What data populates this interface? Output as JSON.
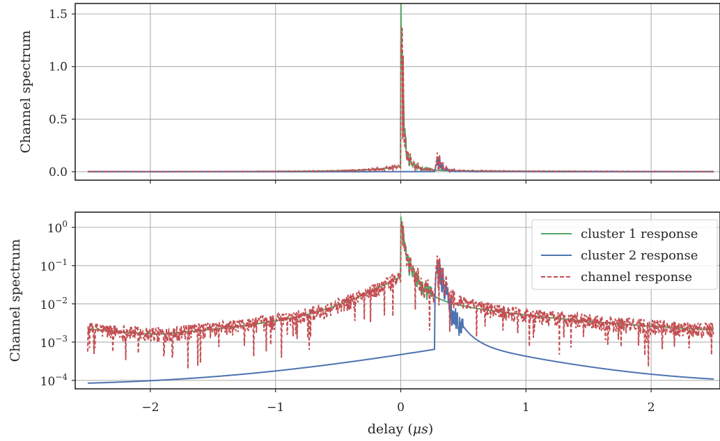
{
  "chart_data": [
    {
      "type": "line",
      "ylabel": "Channel spectrum",
      "xlim": [
        -2.6,
        2.55
      ],
      "ylim": [
        -0.08,
        1.6
      ],
      "yscale": "linear",
      "grid": true,
      "xticks": [
        -2,
        -1,
        0,
        1,
        2
      ],
      "yticks": [
        {
          "v": 0.0,
          "label": "0.0"
        },
        {
          "v": 0.5,
          "label": "0.5"
        },
        {
          "v": 1.0,
          "label": "1.0"
        },
        {
          "v": 1.5,
          "label": "1.5"
        }
      ],
      "series": [
        {
          "name": "cluster 1 response",
          "color": "#55a868",
          "style": "solid"
        },
        {
          "name": "cluster 2 response",
          "color": "#4c72b0",
          "style": "solid"
        },
        {
          "name": "channel response",
          "color": "#c44e52",
          "style": "dashed"
        }
      ]
    },
    {
      "type": "line",
      "ylabel": "Channel spectrum",
      "xlabel_base": "delay (",
      "xlabel_mu": "μs",
      "xlabel_end": ")",
      "xlim": [
        -2.6,
        2.55
      ],
      "ylim": [
        6e-05,
        2.5
      ],
      "yscale": "log",
      "grid": true,
      "legend_position": "top-right",
      "xticks": [
        -2,
        -1,
        0,
        1,
        2
      ],
      "xtick_labels": [
        "−2",
        "−1",
        "0",
        "1",
        "2"
      ],
      "yticks": [
        {
          "v": 1,
          "exp": "0"
        },
        {
          "v": 0.1,
          "exp": "−1"
        },
        {
          "v": 0.01,
          "exp": "−2"
        },
        {
          "v": 0.001,
          "exp": "−3"
        },
        {
          "v": 0.0001,
          "exp": "−4"
        }
      ],
      "ytick_base": "10",
      "series": [
        {
          "name": "cluster 1 response",
          "color": "#55a868",
          "style": "solid"
        },
        {
          "name": "cluster 2 response",
          "color": "#4c72b0",
          "style": "solid"
        },
        {
          "name": "channel response",
          "color": "#c44e52",
          "style": "dashed"
        }
      ],
      "model": {
        "x_range": [
          -2.5,
          2.5
        ],
        "cluster1": {
          "peak_x": 0.0,
          "peak_y": 1.55,
          "floor": 0.0014
        },
        "cluster2": {
          "onset_x": 0.27,
          "peak_x": 0.3,
          "peak_y": 0.12,
          "floor": 9e-05
        },
        "channel_noise_floor": 0.0015
      }
    }
  ]
}
